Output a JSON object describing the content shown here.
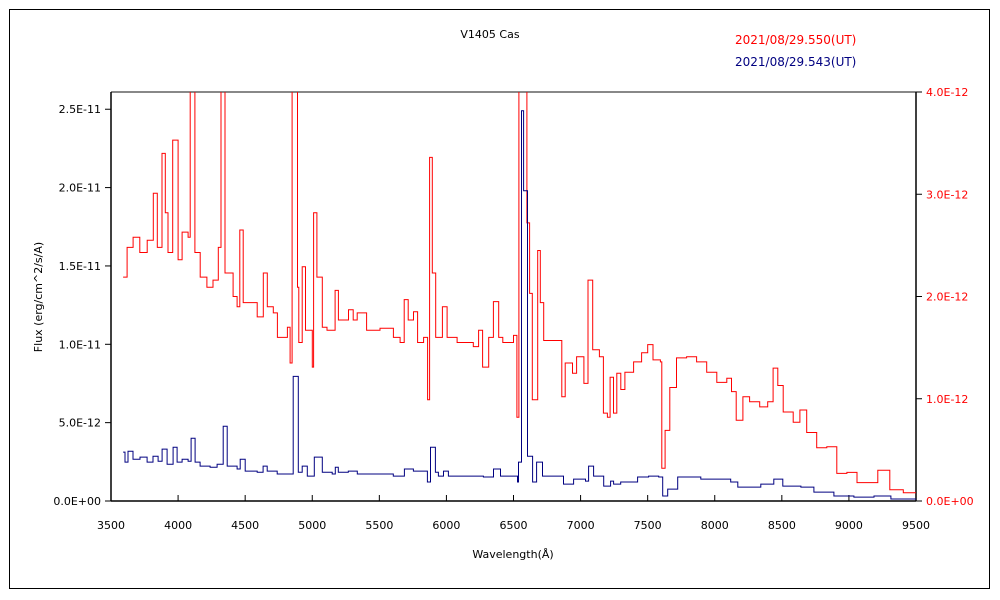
{
  "chart_data": {
    "type": "line",
    "title": "V1405 Cas",
    "xlabel": "Wavelength(Å)",
    "ylabel": "Flux (erg/cm^2/s/A)",
    "y2label": "",
    "xlim": [
      3500,
      9500
    ],
    "ylim": [
      0,
      2.61e-11
    ],
    "y2lim": [
      0,
      4e-12
    ],
    "grid": false,
    "legend_position": "top-right",
    "xticks": [
      3500,
      4000,
      4500,
      5000,
      5500,
      6000,
      6500,
      7000,
      7500,
      8000,
      8500,
      9000,
      9500
    ],
    "xtick_labels": [
      "3500",
      "4000",
      "4500",
      "5000",
      "5500",
      "6000",
      "6500",
      "7000",
      "7500",
      "8000",
      "8500",
      "9000",
      "9500"
    ],
    "yticks": [
      0,
      5e-12,
      1e-11,
      1.5e-11,
      2e-11,
      2.5e-11
    ],
    "ytick_labels": [
      "0.0E+00",
      "5.0E-12",
      "1.0E-11",
      "1.5E-11",
      "2.0E-11",
      "2.5E-11"
    ],
    "y2ticks": [
      0,
      1e-12,
      2e-12,
      3e-12,
      4e-12
    ],
    "y2tick_labels": [
      "0.0E+00",
      "1.0E-12",
      "2.0E-12",
      "3.0E-12",
      "4.0E-12"
    ],
    "series": [
      {
        "name": "2021/08/29.550(UT)",
        "color": "#ff0000",
        "axis": "right",
        "x": [
          3590,
          3620,
          3665,
          3715,
          3770,
          3815,
          3845,
          3880,
          3905,
          3925,
          3960,
          4000,
          4030,
          4075,
          4090,
          4125,
          4165,
          4215,
          4260,
          4300,
          4320,
          4350,
          4410,
          4440,
          4460,
          4485,
          4535,
          4590,
          4635,
          4665,
          4710,
          4740,
          4815,
          4835,
          4850,
          4890,
          4900,
          4925,
          4950,
          4985,
          5000,
          5010,
          5035,
          5075,
          5110,
          5170,
          5195,
          5270,
          5305,
          5335,
          5405,
          5505,
          5605,
          5655,
          5685,
          5715,
          5755,
          5785,
          5830,
          5860,
          5875,
          5895,
          5920,
          5970,
          6005,
          6080,
          6200,
          6240,
          6270,
          6315,
          6350,
          6390,
          6420,
          6480,
          6500,
          6525,
          6540,
          6600,
          6620,
          6640,
          6680,
          6700,
          6725,
          6830,
          6860,
          6885,
          6940,
          6970,
          7025,
          7055,
          7090,
          7140,
          7170,
          7200,
          7220,
          7245,
          7270,
          7300,
          7330,
          7395,
          7455,
          7500,
          7540,
          7595,
          7605,
          7630,
          7665,
          7715,
          7790,
          7865,
          7940,
          8015,
          8090,
          8125,
          8160,
          8210,
          8260,
          8335,
          8395,
          8435,
          8470,
          8510,
          8585,
          8635,
          8685,
          8760,
          8835,
          8910,
          8985,
          9060,
          9140,
          9215,
          9305,
          9405,
          9500
        ],
        "y": [
          2.19e-12,
          2.48e-12,
          2.58e-12,
          2.43e-12,
          2.55e-12,
          3.01e-12,
          2.48e-12,
          3.4e-12,
          2.82e-12,
          2.43e-12,
          3.53e-12,
          2.36e-12,
          2.63e-12,
          2.58e-12,
          4.5e-12,
          2.43e-12,
          2.19e-12,
          2.09e-12,
          2.16e-12,
          2.48e-12,
          4.5e-12,
          2.23e-12,
          2e-12,
          1.9e-12,
          2.65e-12,
          1.94e-12,
          1.94e-12,
          1.8e-12,
          2.23e-12,
          1.9e-12,
          1.84e-12,
          1.6e-12,
          1.7e-12,
          1.35e-12,
          4.5e-12,
          2.09e-12,
          1.55e-12,
          2.29e-12,
          1.67e-12,
          1.67e-12,
          1.31e-12,
          2.82e-12,
          2.19e-12,
          1.7e-12,
          1.67e-12,
          2.06e-12,
          1.77e-12,
          1.87e-12,
          1.77e-12,
          1.84e-12,
          1.67e-12,
          1.69e-12,
          1.6e-12,
          1.55e-12,
          1.97e-12,
          1.77e-12,
          1.85e-12,
          1.55e-12,
          1.6e-12,
          9.9e-13,
          3.36e-12,
          2.23e-12,
          1.6e-12,
          1.9e-12,
          1.6e-12,
          1.55e-12,
          1.51e-12,
          1.67e-12,
          1.31e-12,
          1.6e-12,
          1.95e-12,
          1.6e-12,
          1.55e-12,
          1.55e-12,
          1.62e-12,
          8.2e-13,
          4.5e-12,
          2.72e-12,
          2.03e-12,
          9.9e-13,
          2.45e-12,
          1.94e-12,
          1.57e-12,
          1.57e-12,
          1.02e-12,
          1.35e-12,
          1.25e-12,
          1.41e-12,
          1.15e-12,
          2.16e-12,
          1.48e-12,
          1.41e-12,
          8.6e-13,
          8.2e-13,
          1.21e-12,
          8.6e-13,
          1.25e-12,
          1.09e-12,
          1.26e-12,
          1.36e-12,
          1.45e-12,
          1.53e-12,
          1.38e-12,
          1.36e-12,
          3.2e-13,
          6.9e-13,
          1.11e-12,
          1.4e-12,
          1.41e-12,
          1.36e-12,
          1.26e-12,
          1.16e-12,
          1.2e-12,
          1.07e-12,
          7.9e-13,
          1.02e-12,
          9.7e-13,
          9.2e-13,
          9.7e-13,
          1.3e-12,
          1.13e-12,
          8.7e-13,
          7.7e-13,
          8.9e-13,
          6.7e-13,
          5.2e-13,
          5.3e-13,
          2.7e-13,
          2.8e-13,
          1.8e-13,
          1.8e-13,
          3e-13,
          1.1e-13,
          8e-14,
          8e-14
        ]
      },
      {
        "name": "2021/08/29.543(UT)",
        "color": "#000080",
        "axis": "left",
        "x": [
          3590,
          3604,
          3627,
          3664,
          3716,
          3769,
          3813,
          3851,
          3881,
          3918,
          3963,
          3993,
          4030,
          4075,
          4097,
          4127,
          4164,
          4239,
          4291,
          4336,
          4366,
          4440,
          4463,
          4500,
          4590,
          4634,
          4664,
          4739,
          4836,
          4858,
          4896,
          4925,
          4963,
          5000,
          5015,
          5075,
          5149,
          5172,
          5194,
          5269,
          5336,
          5604,
          5687,
          5754,
          5858,
          5881,
          5918,
          5940,
          5978,
          6015,
          6201,
          6276,
          6351,
          6403,
          6515,
          6530,
          6537,
          6560,
          6575,
          6604,
          6642,
          6672,
          6716,
          6866,
          6873,
          6948,
          7037,
          7060,
          7097,
          7172,
          7224,
          7246,
          7299,
          7425,
          7507,
          7582,
          7612,
          7649,
          7724,
          7896,
          8119,
          8172,
          8343,
          8440,
          8507,
          8642,
          8739,
          8888,
          9037,
          9187,
          9313,
          9500
        ],
        "y": [
          3.12e-12,
          2.48e-12,
          3.18e-12,
          2.67e-12,
          2.8e-12,
          2.48e-12,
          2.86e-12,
          2.54e-12,
          3.31e-12,
          2.35e-12,
          3.43e-12,
          2.48e-12,
          2.67e-12,
          2.54e-12,
          4.01e-12,
          2.48e-12,
          2.23e-12,
          2.16e-12,
          2.35e-12,
          4.77e-12,
          2.23e-12,
          2.04e-12,
          2.67e-12,
          1.91e-12,
          1.84e-12,
          2.23e-12,
          1.91e-12,
          1.72e-12,
          1.72e-12,
          7.95e-12,
          1.84e-12,
          2.23e-12,
          1.59e-12,
          1.59e-12,
          2.8e-12,
          1.84e-12,
          1.72e-12,
          2.16e-12,
          1.84e-12,
          1.91e-12,
          1.72e-12,
          1.59e-12,
          2.04e-12,
          1.91e-12,
          1.21e-12,
          3.43e-12,
          1.84e-12,
          1.59e-12,
          1.91e-12,
          1.59e-12,
          1.59e-12,
          1.53e-12,
          2.04e-12,
          1.59e-12,
          1.59e-12,
          1.21e-12,
          2.48e-12,
          2.49e-11,
          1.98e-11,
          2.86e-12,
          1.21e-12,
          2.48e-12,
          1.59e-12,
          1.59e-12,
          1.08e-12,
          1.4e-12,
          1.27e-12,
          2.23e-12,
          1.59e-12,
          9.5e-13,
          1.27e-12,
          1.08e-12,
          1.21e-12,
          1.53e-12,
          1.59e-12,
          1.53e-12,
          3.2e-13,
          7.6e-13,
          1.53e-12,
          1.4e-12,
          1.21e-12,
          8.9e-13,
          1.08e-12,
          1.4e-12,
          9.5e-13,
          8.9e-13,
          5.7e-13,
          3.2e-13,
          2.5e-13,
          3.2e-13,
          1.3e-13,
          1.3e-13
        ]
      }
    ]
  }
}
